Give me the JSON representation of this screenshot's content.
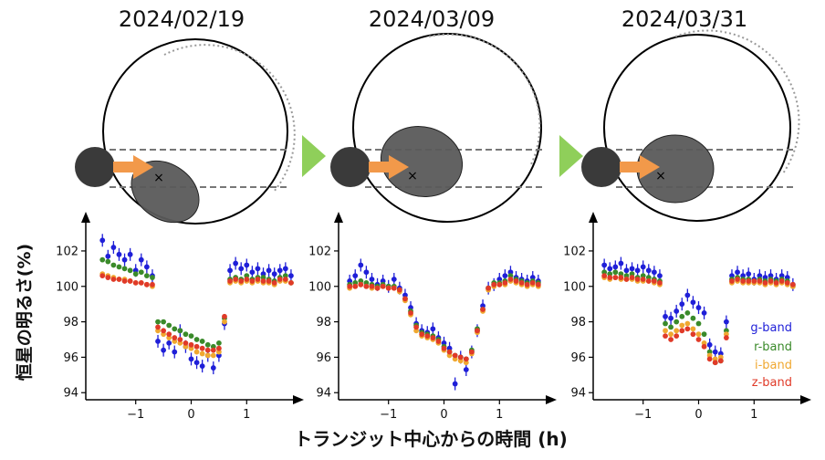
{
  "chart_data": {
    "type": "scatter",
    "ylabel": "恒星の明るさ(%)",
    "xlabel": "トランジット中心からの時間 (h)",
    "legend": {
      "placement": "inside-right of third panel",
      "entries": [
        {
          "label": "g-band",
          "color": "#1f1fd8"
        },
        {
          "label": "r-band",
          "color": "#3a8a2a"
        },
        {
          "label": "i-band",
          "color": "#f0a830"
        },
        {
          "label": "z-band",
          "color": "#e03a28"
        }
      ]
    },
    "xlim": [
      -1.9,
      1.9
    ],
    "ylim": [
      93.6,
      103.8
    ],
    "xticks": [
      -1,
      0,
      1
    ],
    "xtick_labels": [
      "−1",
      "0",
      "1"
    ],
    "yticks": [
      94,
      96,
      98,
      100,
      102
    ],
    "ytick_labels": [
      "94",
      "96",
      "98",
      "100",
      "102"
    ],
    "panels": [
      {
        "date": "2024/02/19",
        "bands": {
          "g": {
            "x": [
              -1.6,
              -1.5,
              -1.4,
              -1.3,
              -1.2,
              -1.1,
              -1.0,
              -0.9,
              -0.8,
              -0.7,
              -0.6,
              -0.5,
              -0.4,
              -0.3,
              -0.2,
              -0.1,
              0.0,
              0.1,
              0.2,
              0.3,
              0.4,
              0.5,
              0.6,
              0.7,
              0.8,
              0.9,
              1.0,
              1.1,
              1.2,
              1.3,
              1.4,
              1.5,
              1.6,
              1.7,
              1.8
            ],
            "y": [
              102.6,
              101.7,
              102.2,
              101.8,
              101.5,
              101.8,
              100.9,
              101.5,
              101.1,
              100.6,
              96.9,
              96.4,
              96.8,
              96.3,
              97.5,
              96.6,
              95.9,
              95.7,
              95.5,
              96.1,
              95.4,
              96.1,
              97.9,
              100.9,
              101.3,
              101.0,
              101.2,
              100.8,
              101.0,
              100.7,
              100.9,
              100.7,
              100.9,
              101.0,
              100.6
            ]
          },
          "r": {
            "x": [
              -1.6,
              -1.5,
              -1.4,
              -1.3,
              -1.2,
              -1.1,
              -1.0,
              -0.9,
              -0.8,
              -0.7,
              -0.6,
              -0.5,
              -0.4,
              -0.3,
              -0.2,
              -0.1,
              0.0,
              0.1,
              0.2,
              0.3,
              0.4,
              0.5,
              0.6,
              0.7,
              0.8,
              0.9,
              1.0,
              1.1,
              1.2,
              1.3,
              1.4,
              1.5,
              1.6,
              1.7,
              1.8
            ],
            "y": [
              101.5,
              101.4,
              101.2,
              101.1,
              101.0,
              100.9,
              100.7,
              100.8,
              100.6,
              100.5,
              98.0,
              98.0,
              97.8,
              97.6,
              97.5,
              97.3,
              97.2,
              97.0,
              96.9,
              96.7,
              96.6,
              96.8,
              98.2,
              100.4,
              100.5,
              100.4,
              100.6,
              100.4,
              100.5,
              100.5,
              100.4,
              100.3,
              100.5,
              100.6,
              100.2
            ]
          },
          "i": {
            "x": [
              -1.6,
              -1.5,
              -1.4,
              -1.3,
              -1.2,
              -1.1,
              -1.0,
              -0.9,
              -0.8,
              -0.7,
              -0.6,
              -0.5,
              -0.4,
              -0.3,
              -0.2,
              -0.1,
              0.0,
              0.1,
              0.2,
              0.3,
              0.4,
              0.5,
              0.6,
              0.7,
              0.8,
              0.9,
              1.0,
              1.1,
              1.2,
              1.3,
              1.4,
              1.5,
              1.6,
              1.7,
              1.8
            ],
            "y": [
              100.7,
              100.6,
              100.5,
              100.4,
              100.4,
              100.3,
              100.2,
              100.2,
              100.1,
              100.0,
              97.5,
              97.3,
              97.1,
              96.9,
              96.8,
              96.6,
              96.5,
              96.3,
              96.2,
              96.1,
              96.1,
              96.3,
              98.0,
              100.2,
              100.3,
              100.2,
              100.3,
              100.2,
              100.3,
              100.2,
              100.2,
              100.1,
              100.3,
              100.3,
              100.2
            ]
          },
          "z": {
            "x": [
              -1.6,
              -1.5,
              -1.4,
              -1.3,
              -1.2,
              -1.1,
              -1.0,
              -0.9,
              -0.8,
              -0.7,
              -0.6,
              -0.5,
              -0.4,
              -0.3,
              -0.2,
              -0.1,
              0.0,
              0.1,
              0.2,
              0.3,
              0.4,
              0.5,
              0.6,
              0.7,
              0.8,
              0.9,
              1.0,
              1.1,
              1.2,
              1.3,
              1.4,
              1.5,
              1.6,
              1.7,
              1.8
            ],
            "y": [
              100.6,
              100.5,
              100.4,
              100.4,
              100.3,
              100.3,
              100.2,
              100.2,
              100.1,
              100.1,
              97.7,
              97.5,
              97.3,
              97.1,
              97.0,
              96.8,
              96.7,
              96.6,
              96.5,
              96.4,
              96.4,
              96.5,
              98.3,
              100.3,
              100.4,
              100.3,
              100.4,
              100.3,
              100.4,
              100.3,
              100.3,
              100.2,
              100.4,
              100.4,
              100.2
            ]
          }
        }
      },
      {
        "date": "2024/03/09",
        "bands": {
          "g": {
            "x": [
              -1.7,
              -1.6,
              -1.5,
              -1.4,
              -1.3,
              -1.2,
              -1.1,
              -1.0,
              -0.9,
              -0.8,
              -0.7,
              -0.6,
              -0.5,
              -0.4,
              -0.3,
              -0.2,
              -0.1,
              0.0,
              0.1,
              0.2,
              0.3,
              0.4,
              0.5,
              0.6,
              0.7,
              0.8,
              0.9,
              1.0,
              1.1,
              1.2,
              1.3,
              1.4,
              1.5,
              1.6,
              1.7
            ],
            "y": [
              100.3,
              100.6,
              101.2,
              100.8,
              100.4,
              100.1,
              100.3,
              100.0,
              100.4,
              99.9,
              99.5,
              98.8,
              97.9,
              97.5,
              97.4,
              97.6,
              97.1,
              96.8,
              96.5,
              94.5,
              96.0,
              95.3,
              96.3,
              97.5,
              98.9,
              99.9,
              100.1,
              100.4,
              100.6,
              100.8,
              100.5,
              100.4,
              100.3,
              100.5,
              100.3
            ]
          },
          "r": {
            "x": [
              -1.7,
              -1.6,
              -1.5,
              -1.4,
              -1.3,
              -1.2,
              -1.1,
              -1.0,
              -0.9,
              -0.8,
              -0.7,
              -0.6,
              -0.5,
              -0.4,
              -0.3,
              -0.2,
              -0.1,
              0.0,
              0.1,
              0.2,
              0.3,
              0.4,
              0.5,
              0.6,
              0.7,
              0.8,
              0.9,
              1.0,
              1.1,
              1.2,
              1.3,
              1.4,
              1.5,
              1.6,
              1.7
            ],
            "y": [
              100.1,
              100.2,
              100.3,
              100.2,
              100.1,
              100.0,
              100.1,
              100.0,
              100.0,
              99.8,
              99.3,
              98.6,
              97.8,
              97.4,
              97.3,
              97.2,
              97.0,
              96.6,
              96.3,
              96.1,
              96.0,
              95.9,
              96.4,
              97.6,
              98.7,
              99.9,
              100.2,
              100.2,
              100.3,
              100.6,
              100.4,
              100.3,
              100.2,
              100.3,
              100.2
            ]
          },
          "i": {
            "x": [
              -1.7,
              -1.6,
              -1.5,
              -1.4,
              -1.3,
              -1.2,
              -1.1,
              -1.0,
              -0.9,
              -0.8,
              -0.7,
              -0.6,
              -0.5,
              -0.4,
              -0.3,
              -0.2,
              -0.1,
              0.0,
              0.1,
              0.2,
              0.3,
              0.4,
              0.5,
              0.6,
              0.7,
              0.8,
              0.9,
              1.0,
              1.1,
              1.2,
              1.3,
              1.4,
              1.5,
              1.6,
              1.7
            ],
            "y": [
              99.9,
              100.0,
              100.1,
              100.0,
              99.9,
              99.9,
              100.0,
              99.9,
              99.9,
              99.7,
              99.2,
              98.4,
              97.5,
              97.2,
              97.1,
              97.0,
              96.8,
              96.4,
              96.1,
              95.9,
              95.8,
              95.7,
              96.2,
              97.4,
              98.6,
              99.8,
              100.0,
              100.1,
              100.1,
              100.3,
              100.2,
              100.1,
              100.0,
              100.1,
              100.0
            ]
          },
          "z": {
            "x": [
              -1.7,
              -1.6,
              -1.5,
              -1.4,
              -1.3,
              -1.2,
              -1.1,
              -1.0,
              -0.9,
              -0.8,
              -0.7,
              -0.6,
              -0.5,
              -0.4,
              -0.3,
              -0.2,
              -0.1,
              0.0,
              0.1,
              0.2,
              0.3,
              0.4,
              0.5,
              0.6,
              0.7,
              0.8,
              0.9,
              1.0,
              1.1,
              1.2,
              1.3,
              1.4,
              1.5,
              1.6,
              1.7
            ],
            "y": [
              100.0,
              100.0,
              100.1,
              100.0,
              100.0,
              99.9,
              100.0,
              99.9,
              99.9,
              99.8,
              99.3,
              98.5,
              97.7,
              97.3,
              97.2,
              97.1,
              96.9,
              96.5,
              96.3,
              96.1,
              96.0,
              95.9,
              96.3,
              97.5,
              98.7,
              99.9,
              100.1,
              100.1,
              100.2,
              100.4,
              100.3,
              100.2,
              100.1,
              100.2,
              100.1
            ]
          }
        }
      },
      {
        "date": "2024/03/31",
        "bands": {
          "g": {
            "x": [
              -1.7,
              -1.6,
              -1.5,
              -1.4,
              -1.3,
              -1.2,
              -1.1,
              -1.0,
              -0.9,
              -0.8,
              -0.7,
              -0.6,
              -0.5,
              -0.4,
              -0.3,
              -0.2,
              -0.1,
              0.0,
              0.1,
              0.2,
              0.3,
              0.4,
              0.5,
              0.6,
              0.7,
              0.8,
              0.9,
              1.0,
              1.1,
              1.2,
              1.3,
              1.4,
              1.5,
              1.6,
              1.7
            ],
            "y": [
              101.2,
              101.0,
              101.1,
              101.3,
              100.9,
              101.0,
              100.9,
              101.1,
              100.9,
              100.8,
              100.6,
              98.3,
              98.2,
              98.6,
              99.0,
              99.5,
              99.1,
              98.8,
              98.5,
              96.7,
              96.3,
              96.2,
              98.0,
              100.6,
              100.8,
              100.6,
              100.7,
              100.4,
              100.6,
              100.5,
              100.6,
              100.4,
              100.6,
              100.5,
              100.1
            ]
          },
          "r": {
            "x": [
              -1.7,
              -1.6,
              -1.5,
              -1.4,
              -1.3,
              -1.2,
              -1.1,
              -1.0,
              -0.9,
              -0.8,
              -0.7,
              -0.6,
              -0.5,
              -0.4,
              -0.3,
              -0.2,
              -0.1,
              0.0,
              0.1,
              0.2,
              0.3,
              0.4,
              0.5,
              0.6,
              0.7,
              0.8,
              0.9,
              1.0,
              1.1,
              1.2,
              1.3,
              1.4,
              1.5,
              1.6,
              1.7
            ],
            "y": [
              100.8,
              100.7,
              100.8,
              100.7,
              100.6,
              100.7,
              100.5,
              100.6,
              100.5,
              100.4,
              100.3,
              97.9,
              97.7,
              98.0,
              98.3,
              98.5,
              98.2,
              97.9,
              97.3,
              96.3,
              95.7,
              95.8,
              97.5,
              100.4,
              100.5,
              100.4,
              100.4,
              100.3,
              100.4,
              100.3,
              100.4,
              100.3,
              100.4,
              100.3,
              100.0
            ]
          },
          "i": {
            "x": [
              -1.7,
              -1.6,
              -1.5,
              -1.4,
              -1.3,
              -1.2,
              -1.1,
              -1.0,
              -0.9,
              -0.8,
              -0.7,
              -0.6,
              -0.5,
              -0.4,
              -0.3,
              -0.2,
              -0.1,
              0.0,
              0.1,
              0.2,
              0.3,
              0.4,
              0.5,
              0.6,
              0.7,
              0.8,
              0.9,
              1.0,
              1.1,
              1.2,
              1.3,
              1.4,
              1.5,
              1.6,
              1.7
            ],
            "y": [
              100.5,
              100.4,
              100.5,
              100.4,
              100.4,
              100.4,
              100.3,
              100.3,
              100.3,
              100.2,
              100.1,
              97.5,
              97.3,
              97.5,
              97.8,
              97.9,
              97.6,
              97.3,
              96.8,
              96.1,
              95.9,
              96.0,
              97.3,
              100.2,
              100.3,
              100.2,
              100.2,
              100.2,
              100.2,
              100.1,
              100.2,
              100.1,
              100.2,
              100.1,
              100.0
            ]
          },
          "z": {
            "x": [
              -1.7,
              -1.6,
              -1.5,
              -1.4,
              -1.3,
              -1.2,
              -1.1,
              -1.0,
              -0.9,
              -0.8,
              -0.7,
              -0.6,
              -0.5,
              -0.4,
              -0.3,
              -0.2,
              -0.1,
              0.0,
              0.1,
              0.2,
              0.3,
              0.4,
              0.5,
              0.6,
              0.7,
              0.8,
              0.9,
              1.0,
              1.1,
              1.2,
              1.3,
              1.4,
              1.5,
              1.6,
              1.7
            ],
            "y": [
              100.6,
              100.5,
              100.5,
              100.5,
              100.4,
              100.5,
              100.4,
              100.4,
              100.3,
              100.3,
              100.2,
              97.2,
              97.0,
              97.2,
              97.5,
              97.6,
              97.3,
              97.0,
              96.6,
              95.9,
              95.7,
              95.8,
              97.1,
              100.3,
              100.4,
              100.3,
              100.3,
              100.3,
              100.3,
              100.2,
              100.3,
              100.2,
              100.3,
              100.2,
              100.1
            ]
          }
        }
      }
    ],
    "diagram": {
      "planet_color": "#3a3a3a",
      "arrow_color": "#f2994a",
      "occulter_color": "#5a5a5a",
      "triangle_color": "#8fcf5a"
    }
  }
}
